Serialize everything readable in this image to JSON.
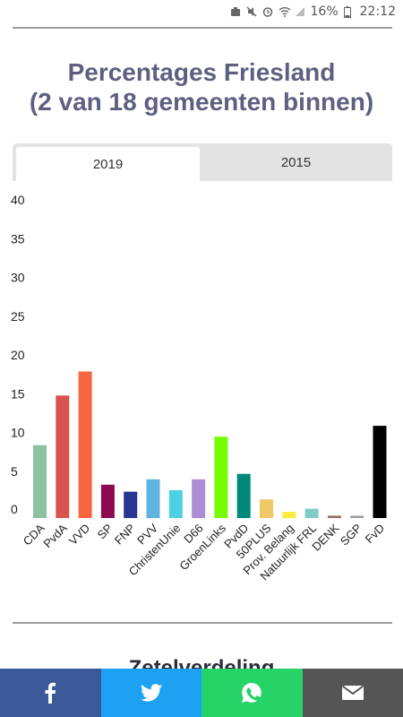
{
  "status_bar": {
    "battery": "16%",
    "time": "22:12"
  },
  "title_line1": "Percentages Friesland",
  "title_line2": "(2 van 18 gemeenten binnen)",
  "tabs": [
    {
      "label": "2019",
      "active": true
    },
    {
      "label": "2015",
      "active": false
    }
  ],
  "next_section_heading": "Zetelverdeling",
  "share": {
    "facebook_color": "#3b5998",
    "twitter_color": "#1da1f2",
    "whatsapp_color": "#25d366",
    "email_color": "#555555"
  },
  "chart_data": {
    "type": "bar",
    "ylim": [
      0,
      40
    ],
    "yticks": [
      "0",
      "5",
      "10",
      "15",
      "20",
      "25",
      "30",
      "35",
      "40"
    ],
    "categories": [
      "CDA",
      "PvdA",
      "VVD",
      "SP",
      "FNP",
      "PVV",
      "ChristenUnie",
      "D66",
      "GroenLinks",
      "PvdD",
      "50PLUS",
      "Prov. Belang",
      "Natuurlijk FRL",
      "DENK",
      "SGP",
      "FvD"
    ],
    "values": [
      9.4,
      15.8,
      18.9,
      4.3,
      3.4,
      5.0,
      3.6,
      5.0,
      10.5,
      5.7,
      2.4,
      0.8,
      1.2,
      0.3,
      0.3,
      11.9
    ],
    "colors": [
      "#8cc1a1",
      "#d9534f",
      "#f6663f",
      "#8b0a50",
      "#283593",
      "#5fb3e0",
      "#4dd0e1",
      "#ab8ed4",
      "#76ff03",
      "#00897b",
      "#f0c866",
      "#ffeb3b",
      "#80cbc4",
      "#8d6e63",
      "#9e9e9e",
      "#000000"
    ],
    "grid": false
  }
}
